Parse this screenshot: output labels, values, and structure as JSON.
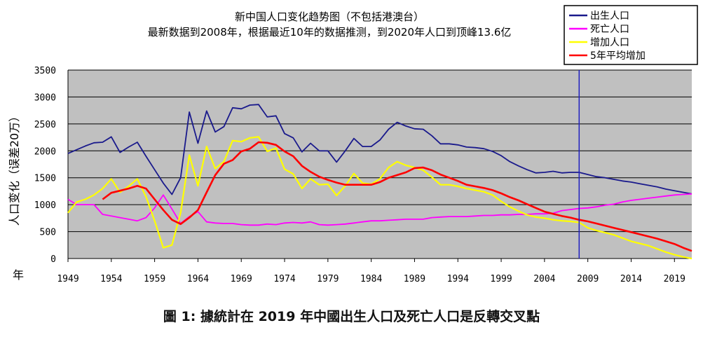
{
  "caption": "圖 1: 據統計在 2019 年中國出生人口及死亡人口是反轉交叉點",
  "chart_data": {
    "type": "line",
    "title": "新中国人口变化趋势图（不包括港澳台）",
    "subtitle": "最新数据到2008年，根据最近10年的数据推测，到2020年人口到顶峰13.6亿",
    "ylabel": "人口变化（误差20万）",
    "xlabel": "年",
    "xlim": [
      1949,
      2021
    ],
    "ylim": [
      0,
      3500
    ],
    "xticks": [
      "1949",
      "1954",
      "1959",
      "1964",
      "1969",
      "1974",
      "1979",
      "1984",
      "1989",
      "1994",
      "1999",
      "2004",
      "2009",
      "2014",
      "2019"
    ],
    "yticks": [
      "0",
      "500",
      "1000",
      "1500",
      "2000",
      "2500",
      "3000",
      "3500"
    ],
    "grid": true,
    "legend_position": "top-right",
    "vline_year": 2008,
    "colors": {
      "plot_bg": "#c0c0c0",
      "vline": "#2020c0"
    },
    "series": [
      {
        "name": "出生人口",
        "color": "#1a1a8c",
        "x": [
          1949,
          1950,
          1951,
          1952,
          1953,
          1954,
          1955,
          1956,
          1957,
          1958,
          1959,
          1960,
          1961,
          1962,
          1963,
          1964,
          1965,
          1966,
          1967,
          1968,
          1969,
          1970,
          1971,
          1972,
          1973,
          1974,
          1975,
          1976,
          1977,
          1978,
          1979,
          1980,
          1981,
          1982,
          1983,
          1984,
          1985,
          1986,
          1987,
          1988,
          1989,
          1990,
          1991,
          1992,
          1993,
          1994,
          1995,
          1996,
          1997,
          1998,
          1999,
          2000,
          2001,
          2002,
          2003,
          2004,
          2005,
          2006,
          2007,
          2008,
          2009,
          2010,
          2011,
          2012,
          2013,
          2014,
          2015,
          2016,
          2017,
          2018,
          2019,
          2020,
          2021
        ],
        "y": [
          1950,
          2020,
          2090,
          2150,
          2160,
          2260,
          1970,
          2070,
          2160,
          1900,
          1650,
          1400,
          1190,
          1500,
          2720,
          2140,
          2740,
          2350,
          2450,
          2800,
          2780,
          2850,
          2860,
          2630,
          2650,
          2320,
          2240,
          1980,
          2140,
          2000,
          2000,
          1790,
          2000,
          2230,
          2080,
          2080,
          2200,
          2400,
          2530,
          2460,
          2410,
          2400,
          2280,
          2130,
          2130,
          2110,
          2070,
          2060,
          2040,
          1990,
          1910,
          1800,
          1720,
          1650,
          1590,
          1600,
          1620,
          1590,
          1600,
          1600,
          1560,
          1520,
          1500,
          1470,
          1440,
          1420,
          1390,
          1360,
          1330,
          1290,
          1260,
          1230,
          1200
        ]
      },
      {
        "name": "死亡人口",
        "color": "#ff00ff",
        "x": [
          1949,
          1950,
          1951,
          1952,
          1953,
          1954,
          1955,
          1956,
          1957,
          1958,
          1959,
          1960,
          1961,
          1962,
          1963,
          1964,
          1965,
          1966,
          1967,
          1968,
          1969,
          1970,
          1971,
          1972,
          1973,
          1974,
          1975,
          1976,
          1977,
          1978,
          1979,
          1980,
          1981,
          1982,
          1983,
          1984,
          1985,
          1986,
          1987,
          1988,
          1989,
          1990,
          1991,
          1992,
          1993,
          1994,
          1995,
          1996,
          1997,
          1998,
          1999,
          2000,
          2001,
          2002,
          2003,
          2004,
          2005,
          2006,
          2007,
          2008,
          2009,
          2010,
          2011,
          2012,
          2013,
          2014,
          2015,
          2016,
          2017,
          2018,
          2019,
          2020,
          2021
        ],
        "y": [
          1100,
          1000,
          1000,
          1000,
          820,
          790,
          760,
          730,
          700,
          760,
          940,
          1180,
          920,
          650,
          780,
          870,
          680,
          660,
          650,
          650,
          630,
          620,
          620,
          640,
          630,
          660,
          670,
          660,
          680,
          630,
          620,
          630,
          640,
          660,
          680,
          700,
          700,
          710,
          720,
          730,
          730,
          730,
          760,
          770,
          780,
          780,
          780,
          790,
          800,
          800,
          810,
          810,
          820,
          820,
          830,
          830,
          840,
          890,
          910,
          930,
          940,
          960,
          990,
          1010,
          1050,
          1080,
          1100,
          1120,
          1140,
          1160,
          1180,
          1190,
          1200
        ]
      },
      {
        "name": "增加人口",
        "color": "#ffff00",
        "x": [
          1949,
          1950,
          1951,
          1952,
          1953,
          1954,
          1955,
          1956,
          1957,
          1958,
          1959,
          1960,
          1961,
          1962,
          1963,
          1964,
          1965,
          1966,
          1967,
          1968,
          1969,
          1970,
          1971,
          1972,
          1973,
          1974,
          1975,
          1976,
          1977,
          1978,
          1979,
          1980,
          1981,
          1982,
          1983,
          1984,
          1985,
          1986,
          1987,
          1988,
          1989,
          1990,
          1991,
          1992,
          1993,
          1994,
          1995,
          1996,
          1997,
          1998,
          1999,
          2000,
          2001,
          2002,
          2003,
          2004,
          2005,
          2006,
          2007,
          2008,
          2009,
          2010,
          2011,
          2012,
          2013,
          2014,
          2015,
          2016,
          2017,
          2018,
          2019,
          2020,
          2021
        ],
        "y": [
          850,
          1050,
          1100,
          1180,
          1300,
          1480,
          1230,
          1340,
          1480,
          1150,
          700,
          200,
          250,
          850,
          1920,
          1350,
          2080,
          1670,
          1800,
          2190,
          2170,
          2240,
          2260,
          1990,
          2050,
          1660,
          1570,
          1300,
          1480,
          1370,
          1380,
          1170,
          1350,
          1580,
          1400,
          1380,
          1480,
          1690,
          1800,
          1730,
          1690,
          1640,
          1510,
          1370,
          1370,
          1340,
          1300,
          1270,
          1240,
          1180,
          1060,
          960,
          880,
          810,
          770,
          750,
          720,
          700,
          690,
          670,
          570,
          520,
          480,
          440,
          380,
          320,
          280,
          240,
          180,
          120,
          70,
          30,
          0
        ]
      },
      {
        "name": "5年平均增加",
        "color": "#ff0000",
        "x": [
          1953,
          1954,
          1955,
          1956,
          1957,
          1958,
          1959,
          1960,
          1961,
          1962,
          1963,
          1964,
          1965,
          1966,
          1967,
          1968,
          1969,
          1970,
          1971,
          1972,
          1973,
          1974,
          1975,
          1976,
          1977,
          1978,
          1979,
          1980,
          1981,
          1982,
          1983,
          1984,
          1985,
          1986,
          1987,
          1988,
          1989,
          1990,
          1991,
          1992,
          1993,
          1994,
          1995,
          1996,
          1997,
          1998,
          1999,
          2000,
          2001,
          2002,
          2003,
          2004,
          2005,
          2006,
          2007,
          2008,
          2009,
          2010,
          2011,
          2012,
          2013,
          2014,
          2015,
          2016,
          2017,
          2018,
          2019,
          2020,
          2021
        ],
        "y": [
          1100,
          1220,
          1260,
          1300,
          1350,
          1300,
          1100,
          900,
          720,
          640,
          760,
          900,
          1230,
          1550,
          1760,
          1830,
          1990,
          2040,
          2160,
          2150,
          2110,
          1990,
          1900,
          1720,
          1610,
          1520,
          1460,
          1410,
          1370,
          1370,
          1370,
          1370,
          1420,
          1500,
          1550,
          1600,
          1680,
          1690,
          1640,
          1560,
          1500,
          1440,
          1370,
          1340,
          1310,
          1270,
          1210,
          1140,
          1080,
          1010,
          940,
          870,
          830,
          790,
          760,
          720,
          690,
          650,
          610,
          570,
          530,
          490,
          450,
          410,
          370,
          320,
          270,
          200,
          140
        ]
      }
    ]
  }
}
